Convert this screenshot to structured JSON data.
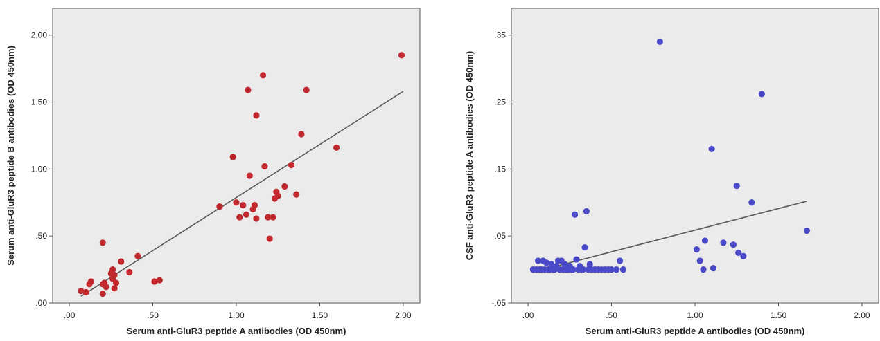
{
  "chart_data": [
    {
      "type": "scatter",
      "xlabel": "Serum anti-GluR3 peptide A antibodies (OD 450nm)",
      "ylabel": "Serum anti-GluR3 peptide B antibodies (OD 450nm)",
      "xlim": [
        -0.1,
        2.1
      ],
      "ylim": [
        0.0,
        2.2
      ],
      "xticks": [
        0.0,
        0.5,
        1.0,
        1.5,
        2.0
      ],
      "xtick_labels": [
        ".00",
        ".50",
        "1.00",
        "1.50",
        "2.00"
      ],
      "yticks": [
        0.0,
        0.5,
        1.0,
        1.5,
        2.0
      ],
      "ytick_labels": [
        ".00",
        ".50",
        "1.00",
        "1.50",
        "2.00"
      ],
      "point_color": "#c0282d",
      "fit_line": {
        "x": [
          0.07,
          2.0
        ],
        "y": [
          0.05,
          1.58
        ]
      },
      "points": [
        [
          0.07,
          0.09
        ],
        [
          0.1,
          0.08
        ],
        [
          0.12,
          0.14
        ],
        [
          0.13,
          0.16
        ],
        [
          0.2,
          0.45
        ],
        [
          0.2,
          0.14
        ],
        [
          0.21,
          0.15
        ],
        [
          0.2,
          0.07
        ],
        [
          0.22,
          0.12
        ],
        [
          0.25,
          0.22
        ],
        [
          0.26,
          0.25
        ],
        [
          0.26,
          0.18
        ],
        [
          0.27,
          0.11
        ],
        [
          0.27,
          0.21
        ],
        [
          0.28,
          0.15
        ],
        [
          0.31,
          0.31
        ],
        [
          0.36,
          0.23
        ],
        [
          0.41,
          0.35
        ],
        [
          0.51,
          0.16
        ],
        [
          0.54,
          0.17
        ],
        [
          0.9,
          0.72
        ],
        [
          0.98,
          1.09
        ],
        [
          1.0,
          0.75
        ],
        [
          1.02,
          0.64
        ],
        [
          1.04,
          0.73
        ],
        [
          1.06,
          0.66
        ],
        [
          1.07,
          1.59
        ],
        [
          1.08,
          0.95
        ],
        [
          1.1,
          0.7
        ],
        [
          1.11,
          0.73
        ],
        [
          1.12,
          0.63
        ],
        [
          1.12,
          1.4
        ],
        [
          1.16,
          1.7
        ],
        [
          1.17,
          1.02
        ],
        [
          1.19,
          0.64
        ],
        [
          1.2,
          0.48
        ],
        [
          1.22,
          0.64
        ],
        [
          1.23,
          0.78
        ],
        [
          1.24,
          0.83
        ],
        [
          1.25,
          0.8
        ],
        [
          1.29,
          0.87
        ],
        [
          1.33,
          1.03
        ],
        [
          1.36,
          0.81
        ],
        [
          1.39,
          1.26
        ],
        [
          1.42,
          1.59
        ],
        [
          1.6,
          1.16
        ],
        [
          1.99,
          1.85
        ]
      ]
    },
    {
      "type": "scatter",
      "xlabel": "Serum anti-GluR3 peptide A antibodies (OD 450nm)",
      "ylabel": "CSF anti-GluR3 peptide A antibodies (OD 450nm)",
      "xlim": [
        -0.1,
        2.1
      ],
      "ylim": [
        -0.05,
        0.39
      ],
      "xticks": [
        0.0,
        0.5,
        1.0,
        1.5,
        2.0
      ],
      "xtick_labels": [
        ".00",
        ".50",
        "1.00",
        "1.50",
        "2.00"
      ],
      "yticks": [
        -0.05,
        0.05,
        0.15,
        0.25,
        0.35
      ],
      "ytick_labels": [
        "-.05",
        ".05",
        ".15",
        ".25",
        ".35"
      ],
      "point_color": "#4a4ac8",
      "fit_line": {
        "x": [
          0.03,
          1.67
        ],
        "y": [
          -0.004,
          0.102
        ]
      },
      "points": [
        [
          0.03,
          0.0
        ],
        [
          0.05,
          0.0
        ],
        [
          0.06,
          0.013
        ],
        [
          0.07,
          0.0
        ],
        [
          0.08,
          0.0
        ],
        [
          0.09,
          0.013
        ],
        [
          0.1,
          0.0
        ],
        [
          0.11,
          0.01
        ],
        [
          0.12,
          0.0
        ],
        [
          0.13,
          0.0
        ],
        [
          0.14,
          0.008
        ],
        [
          0.15,
          0.0
        ],
        [
          0.16,
          0.0
        ],
        [
          0.17,
          0.005
        ],
        [
          0.18,
          0.013
        ],
        [
          0.19,
          0.0
        ],
        [
          0.2,
          0.013
        ],
        [
          0.21,
          0.0
        ],
        [
          0.22,
          0.008
        ],
        [
          0.23,
          0.0
        ],
        [
          0.24,
          0.0
        ],
        [
          0.25,
          0.005
        ],
        [
          0.26,
          0.0
        ],
        [
          0.27,
          0.0
        ],
        [
          0.28,
          0.082
        ],
        [
          0.29,
          0.015
        ],
        [
          0.3,
          0.0
        ],
        [
          0.31,
          0.005
        ],
        [
          0.32,
          0.0
        ],
        [
          0.33,
          0.0
        ],
        [
          0.34,
          0.033
        ],
        [
          0.35,
          0.087
        ],
        [
          0.36,
          0.0
        ],
        [
          0.37,
          0.008
        ],
        [
          0.38,
          0.0
        ],
        [
          0.4,
          0.0
        ],
        [
          0.42,
          0.0
        ],
        [
          0.44,
          0.0
        ],
        [
          0.46,
          0.0
        ],
        [
          0.48,
          0.0
        ],
        [
          0.5,
          0.0
        ],
        [
          0.53,
          0.0
        ],
        [
          0.55,
          0.013
        ],
        [
          0.57,
          0.0
        ],
        [
          0.79,
          0.34
        ],
        [
          1.01,
          0.03
        ],
        [
          1.03,
          0.013
        ],
        [
          1.05,
          0.0
        ],
        [
          1.06,
          0.043
        ],
        [
          1.1,
          0.18
        ],
        [
          1.11,
          0.002
        ],
        [
          1.17,
          0.04
        ],
        [
          1.23,
          0.037
        ],
        [
          1.25,
          0.125
        ],
        [
          1.26,
          0.025
        ],
        [
          1.29,
          0.02
        ],
        [
          1.34,
          0.1
        ],
        [
          1.4,
          0.262
        ],
        [
          1.67,
          0.058
        ]
      ]
    }
  ]
}
